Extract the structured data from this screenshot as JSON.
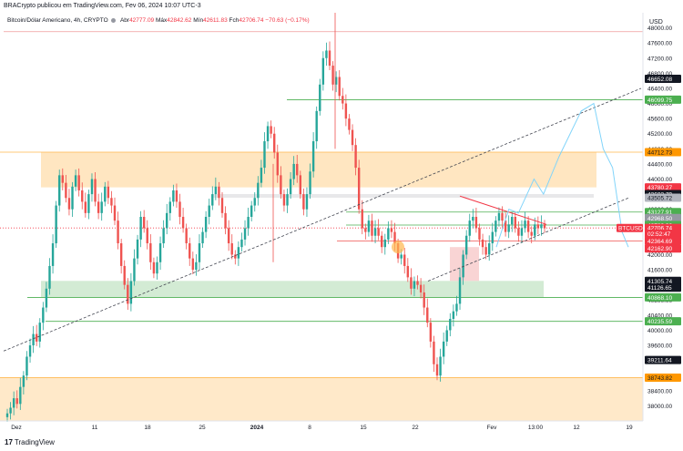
{
  "header": {
    "published": "BRACrypto publicou em TradingView.com, Fev 06, 2024 10:07 UTC-3"
  },
  "legend": {
    "symbol": "Bitcoin/Dólar Americano, 4h, CRYPTO",
    "open_label": "Abr",
    "open": "42777.09",
    "high_label": "Máx",
    "high": "42842.62",
    "low_label": "Mín",
    "low": "42611.83",
    "close_label": "Fch",
    "close": "42706.74",
    "change": "−70.63 (−0.17%)"
  },
  "currency": "USD",
  "footer": {
    "brand": "TradingView",
    "brand_glyph": "17"
  },
  "colors": {
    "up": "#26a69a",
    "down": "#ef5350",
    "zone_orange": "#ffe0b2",
    "zone_green": "#c8e6c9",
    "line_green": "#4caf50",
    "line_red": "#f23645",
    "forecast": "#81d4fa"
  },
  "price_scale": {
    "ticks": [
      "48000.00",
      "47600.00",
      "47200.00",
      "46800.00",
      "46400.00",
      "46000.00",
      "45600.00",
      "45200.00",
      "44800.00",
      "44400.00",
      "44000.00",
      "43600.00",
      "43200.00",
      "42800.00",
      "42400.00",
      "42000.00",
      "41600.00",
      "41200.00",
      "40800.00",
      "40400.00",
      "40000.00",
      "39600.00",
      "39200.00",
      "38800.00",
      "38400.00",
      "38000.00"
    ],
    "badges": [
      {
        "text": "46652.08",
        "price": 46652.08,
        "bg": "#131722",
        "fg": "#ffffff"
      },
      {
        "text": "46099.75",
        "price": 46099.75,
        "bg": "#4caf50",
        "fg": "#ffffff"
      },
      {
        "text": "44712.73",
        "price": 44712.73,
        "bg": "#ff9800",
        "fg": "#131722"
      },
      {
        "text": "43780.27",
        "price": 43780.27,
        "bg": "#f23645",
        "fg": "#ffffff"
      },
      {
        "text": "43602.79",
        "price": 43602.79,
        "bg": "#131722",
        "fg": "#ffffff"
      },
      {
        "text": "43505.72",
        "price": 43505.72,
        "bg": "#b2b5be",
        "fg": "#131722"
      },
      {
        "text": "43127.91",
        "price": 43127.91,
        "bg": "#4caf50",
        "fg": "#ffffff"
      },
      {
        "text": "42968.50",
        "price": 42968.5,
        "bg": "#9598a1",
        "fg": "#ffffff"
      },
      {
        "text": "42783.93",
        "price": 42783.93,
        "bg": "#4caf50",
        "fg": "#ffffff"
      },
      {
        "text": "42706.74",
        "price": 42706.74,
        "bg": "#f23645",
        "fg": "#ffffff"
      },
      {
        "text": "02:52:47",
        "price": 42555,
        "bg": "#f23645",
        "fg": "#ffffff"
      },
      {
        "text": "42364.69",
        "price": 42364.69,
        "bg": "#f23645",
        "fg": "#ffffff"
      },
      {
        "text": "42162.90",
        "price": 42162.9,
        "bg": "#f23645",
        "fg": "#ffffff"
      },
      {
        "text": "41305.74",
        "price": 41305.74,
        "bg": "#131722",
        "fg": "#ffffff"
      },
      {
        "text": "41126.65",
        "price": 41126.65,
        "bg": "#131722",
        "fg": "#ffffff"
      },
      {
        "text": "40868.10",
        "price": 40868.1,
        "bg": "#4caf50",
        "fg": "#ffffff"
      },
      {
        "text": "40235.59",
        "price": 40235.59,
        "bg": "#4caf50",
        "fg": "#ffffff"
      },
      {
        "text": "39211.64",
        "price": 39211.64,
        "bg": "#131722",
        "fg": "#ffffff"
      },
      {
        "text": "38743.82",
        "price": 38743.82,
        "bg": "#ff9800",
        "fg": "#131722"
      }
    ],
    "symbol_tag": "BTCUSD"
  },
  "time_scale": {
    "labels": [
      "Dez",
      "11",
      "18",
      "25",
      "2024",
      "8",
      "15",
      "22",
      "Fev",
      "13:00",
      "12",
      "19"
    ]
  },
  "chart_data": {
    "type": "candlestick",
    "symbol": "BTCUSD",
    "interval": "4h",
    "ylim": [
      37600,
      48400
    ],
    "closes": [
      37800,
      37950,
      38200,
      38050,
      38500,
      38800,
      39300,
      39600,
      39900,
      39700,
      40200,
      40600,
      41100,
      41700,
      42300,
      43300,
      44100,
      43900,
      43500,
      43200,
      43800,
      44100,
      43700,
      43400,
      43100,
      43600,
      44000,
      43400,
      43100,
      43400,
      43800,
      43500,
      43300,
      42900,
      42300,
      41700,
      41200,
      40700,
      41300,
      41900,
      42400,
      43000,
      42700,
      42300,
      41800,
      41500,
      41800,
      42300,
      42700,
      43100,
      43400,
      43700,
      43400,
      43000,
      42700,
      42300,
      41900,
      41600,
      41800,
      42300,
      42600,
      43000,
      43300,
      43600,
      43800,
      43500,
      43100,
      42700,
      42300,
      42000,
      41900,
      42200,
      42400,
      42700,
      43000,
      43300,
      43500,
      43900,
      44300,
      45000,
      45400,
      45200,
      44700,
      44100,
      43600,
      43300,
      43600,
      44000,
      44400,
      44100,
      43600,
      43200,
      43600,
      44200,
      45000,
      45800,
      46500,
      47200,
      47400,
      47000,
      46500,
      46700,
      46200,
      46000,
      45600,
      45300,
      44900,
      44300,
      43200,
      42700,
      42600,
      42900,
      42500,
      42700,
      42500,
      42200,
      42400,
      42700,
      42600,
      42300,
      41900,
      42000,
      41700,
      41400,
      41100,
      41300,
      41200,
      41000,
      40600,
      40200,
      39700,
      39100,
      38800,
      39300,
      39700,
      40000,
      40300,
      40500,
      40700,
      41400,
      42000,
      42500,
      42900,
      43000,
      42700,
      42400,
      42200,
      42000,
      42300,
      42600,
      42900,
      43100,
      42900,
      42600,
      42800,
      43000,
      42700,
      42500,
      42700,
      42900,
      42600,
      42500,
      42800,
      42700,
      42800,
      42700
    ]
  },
  "drawings": {
    "forecast_points": [
      [
        42200,
        0
      ],
      [
        43200,
        8
      ],
      [
        43100,
        14
      ],
      [
        44000,
        24
      ],
      [
        43600,
        30
      ],
      [
        44600,
        40
      ],
      [
        45800,
        54
      ],
      [
        46000,
        62
      ],
      [
        44800,
        68
      ],
      [
        44300,
        74
      ],
      [
        42600,
        80
      ],
      [
        42200,
        84
      ]
    ]
  }
}
